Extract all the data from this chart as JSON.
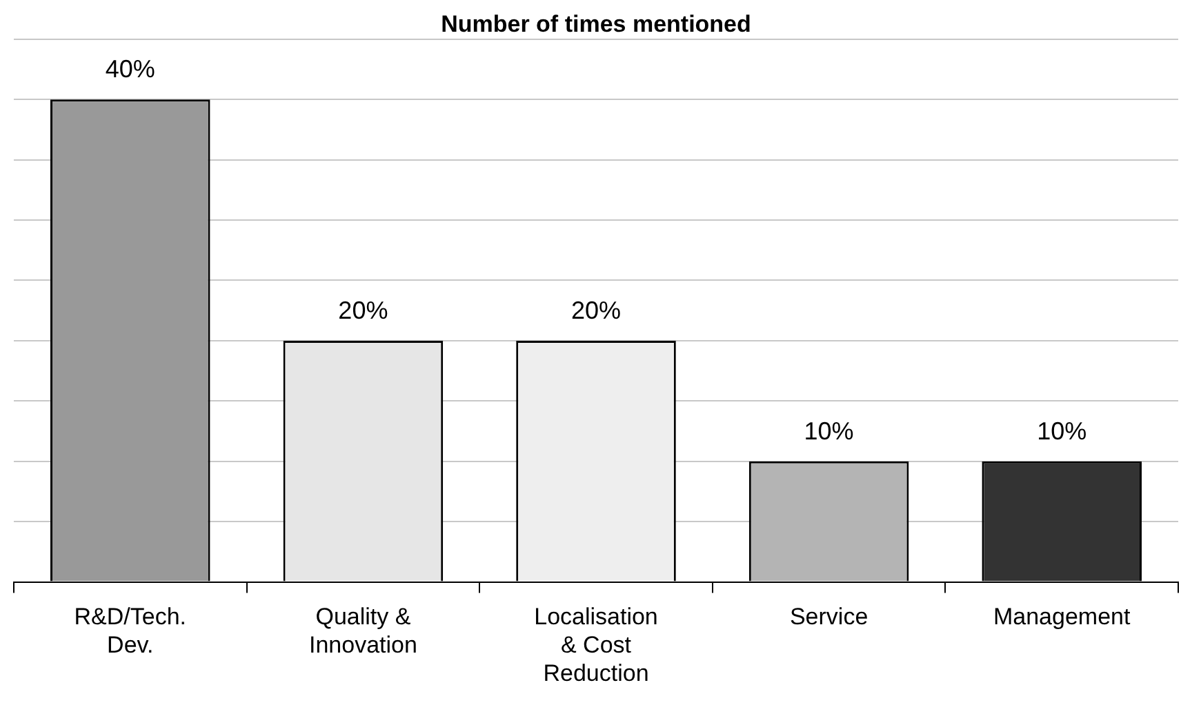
{
  "chart_data": {
    "type": "bar",
    "title": "Number of times mentioned",
    "categories": [
      "R&D/Tech. Dev.",
      "Quality & Innovation",
      "Localisation & Cost Reduction",
      "Service",
      "Management"
    ],
    "values": [
      40,
      20,
      20,
      10,
      10
    ],
    "colors": [
      "#999999",
      "#e6e6e6",
      "#eeeeee",
      "#b4b4b4",
      "#333333"
    ],
    "value_labels": [
      "40%",
      "20%",
      "20%",
      "10%",
      "10%"
    ],
    "grid": "y",
    "tick_labels": "x",
    "legend": false
  }
}
